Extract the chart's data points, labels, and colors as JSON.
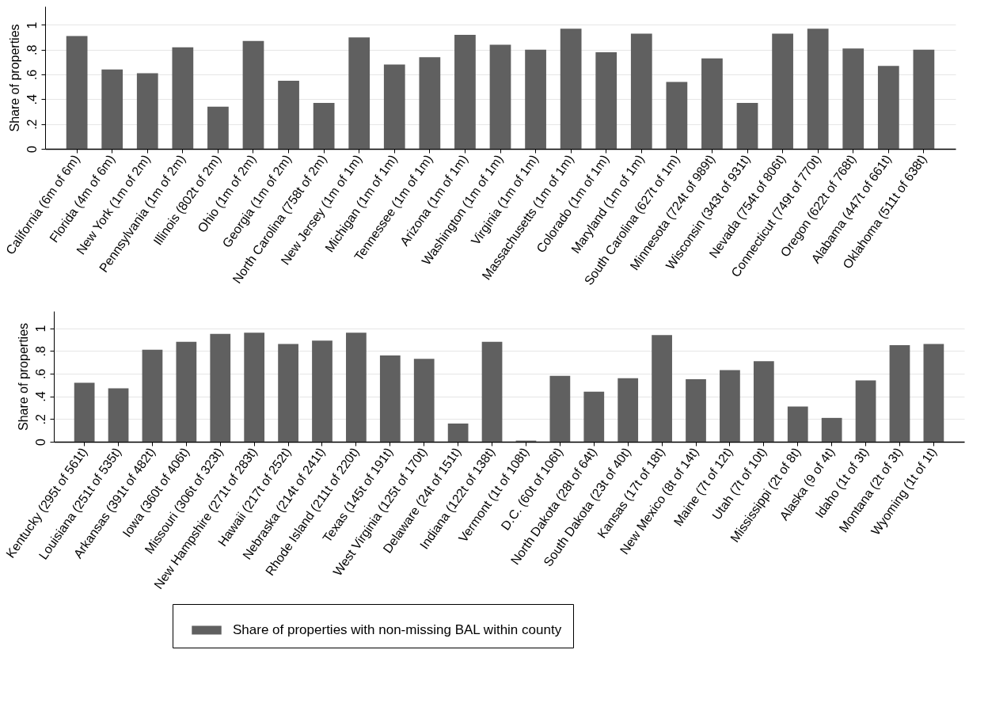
{
  "chart_data": [
    {
      "type": "bar",
      "ylabel": "Share of properties",
      "categories": [
        "California (6m of 6m)",
        "Florida (4m of 6m)",
        "New York (1m of 2m)",
        "Pennsylvania (1m of 2m)",
        "Illinois (802t of 2m)",
        "Ohio (1m of 2m)",
        "Georgia (1m of 2m)",
        "North Carolina (758t of 2m)",
        "New Jersey (1m of 1m)",
        "Michigan (1m of 1m)",
        "Tennessee (1m of 1m)",
        "Arizona (1m of 1m)",
        "Washington (1m of 1m)",
        "Virginia (1m of 1m)",
        "Massachusetts (1m of 1m)",
        "Colorado (1m of 1m)",
        "Maryland (1m of 1m)",
        "South Carolina (627t of 1m)",
        "Minnesota (724t of 989t)",
        "Wisconsin (343t of 931t)",
        "Nevada (754t of 806t)",
        "Connecticut (749t of 770t)",
        "Oregon (622t of 768t)",
        "Alabama (447t of 661t)",
        "Oklahoma (511t of 638t)"
      ],
      "series": [
        {
          "color": "#606060",
          "values": [
            0.91,
            0.64,
            0.61,
            0.82,
            0.34,
            0.87,
            0.55,
            0.37,
            0.9,
            0.68,
            0.74,
            0.92,
            0.84,
            0.8,
            0.97,
            0.78,
            0.93,
            0.54,
            0.73,
            0.37,
            0.93,
            0.97,
            0.81,
            0.67,
            0.8
          ]
        }
      ],
      "ylim": [
        0,
        1.15
      ],
      "yticks": [
        {
          "value": 0,
          "label": "0"
        },
        {
          "value": 0.2,
          "label": ".2"
        },
        {
          "value": 0.4,
          "label": ".4"
        },
        {
          "value": 0.6,
          "label": ".6"
        },
        {
          "value": 0.8,
          "label": ".8"
        },
        {
          "value": 1,
          "label": "1"
        }
      ],
      "grid": "y"
    },
    {
      "type": "bar",
      "ylabel": "Share of properties",
      "categories": [
        "Kentucky (295t of 561t)",
        "Louisiana (251t of 535t)",
        "Arkansas (391t of 482t)",
        "Iowa (360t of 406t)",
        "Missouri (306t of 323t)",
        "New Hampshire (271t of 283t)",
        "Hawaii (217t of 252t)",
        "Nebraska (214t of 241t)",
        "Rhode Island (211t of 220t)",
        "Texas (145t of 191t)",
        "West Virginia (125t of 170t)",
        "Delaware (24t of 151t)",
        "Indiana (122t of 138t)",
        "Vermont (1t of 108t)",
        "D.C. (60t of 106t)",
        "North Dakota (28t of 64t)",
        "South Dakota (23t of 40t)",
        "Kansas (17t of 18t)",
        "New Mexico (8t of 14t)",
        "Maine (7t of 12t)",
        "Utah (7t of 10t)",
        "Mississippi (2t of 8t)",
        "Alaska (9 of 4t)",
        "Idaho (1t of 3t)",
        "Montana (2t of 3t)",
        "Wyoming (1t of 1t)"
      ],
      "series": [
        {
          "name": "Share of properties with non-missing BAL within county",
          "color": "#606060",
          "values": [
            0.52,
            0.47,
            0.81,
            0.88,
            0.95,
            0.96,
            0.86,
            0.89,
            0.96,
            0.76,
            0.73,
            0.16,
            0.88,
            0.01,
            0.58,
            0.44,
            0.56,
            0.94,
            0.55,
            0.63,
            0.71,
            0.31,
            0.21,
            0.54,
            0.85,
            0.86
          ]
        }
      ],
      "ylim": [
        0,
        1.15
      ],
      "yticks": [
        {
          "value": 0,
          "label": "0"
        },
        {
          "value": 0.2,
          "label": ".2"
        },
        {
          "value": 0.4,
          "label": ".4"
        },
        {
          "value": 0.6,
          "label": ".6"
        },
        {
          "value": 0.8,
          "label": ".8"
        },
        {
          "value": 1,
          "label": "1"
        }
      ],
      "grid": "y",
      "legend": "bottom"
    }
  ]
}
